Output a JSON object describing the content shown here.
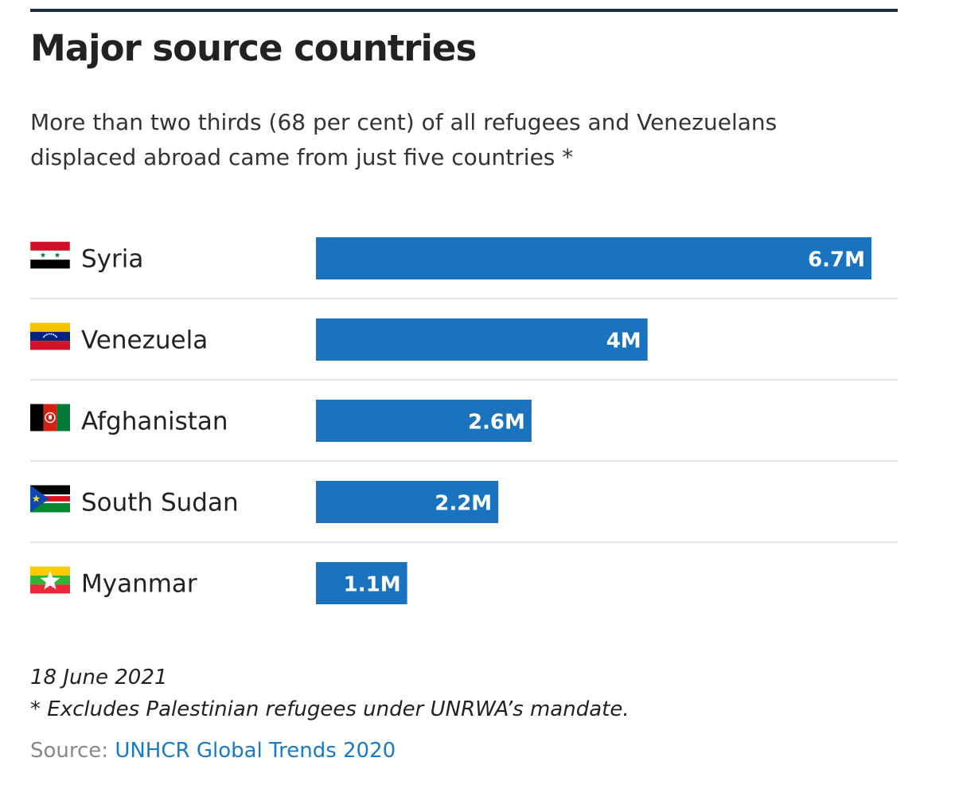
{
  "colors": {
    "bar": "#1a73bf",
    "bar_label": "#ffffff",
    "divider": "#e3e3e3",
    "source_link": "#1a7bc4"
  },
  "header": {
    "title": "Major source countries",
    "subtitle": "More than two thirds (68 per cent) of all refugees and Venezuelans displaced abroad came from just five countries *"
  },
  "chart_data": {
    "type": "bar",
    "orientation": "horizontal",
    "categories": [
      "Syria",
      "Venezuela",
      "Afghanistan",
      "South Sudan",
      "Myanmar"
    ],
    "values": [
      6.7,
      4,
      2.6,
      2.2,
      1.1
    ],
    "value_labels": [
      "6.7M",
      "4M",
      "2.6M",
      "2.2M",
      "1.1M"
    ],
    "flags": [
      "syria-flag-icon",
      "venezuela-flag-icon",
      "afghanistan-flag-icon",
      "south-sudan-flag-icon",
      "myanmar-flag-icon"
    ],
    "xlim": [
      0,
      6.7
    ],
    "grid": false
  },
  "footer": {
    "date": "18 June 2021",
    "note": "* Excludes Palestinian refugees under UNRWA’s mandate.",
    "source_label": "Source:",
    "source_link": "UNHCR Global Trends 2020"
  }
}
